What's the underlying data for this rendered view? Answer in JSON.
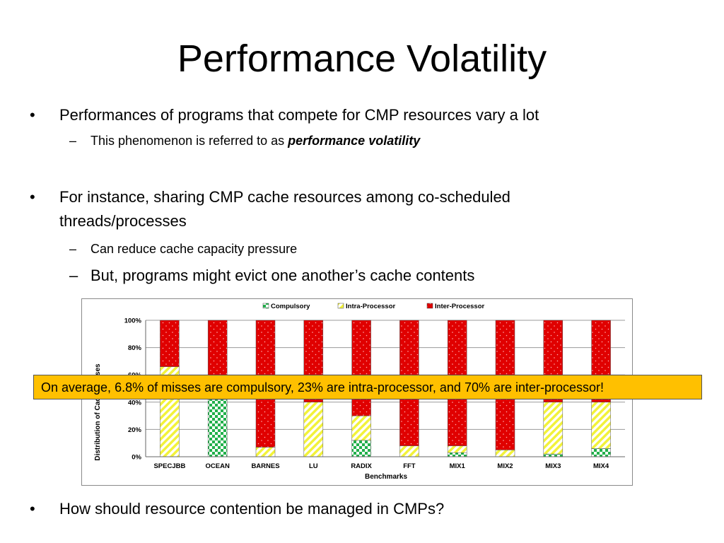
{
  "slide": {
    "title": "Performance Volatility",
    "bullets": [
      {
        "text": "Performances of programs that compete for CMP resources vary a lot",
        "subs": [
          {
            "prefix": "This phenomenon is referred to as ",
            "emphasis": "performance volatility"
          }
        ]
      },
      {
        "text": "For instance, sharing CMP cache resources among co-scheduled threads/processes",
        "subs": [
          {
            "text": "Can reduce cache capacity pressure"
          },
          {
            "text": "But, programs might evict one another’s cache contents"
          }
        ]
      },
      {
        "text": "How should resource contention be managed in CMPs?"
      }
    ],
    "callout": "On average, 6.8% of misses are compulsory, 23% are intra-processor, and 70% are inter-processor!",
    "bullet_glyph": "•",
    "dash_glyph": "–"
  },
  "chart_data": {
    "type": "bar",
    "stacked": true,
    "normalized": true,
    "categories": [
      "SPECJBB",
      "OCEAN",
      "BARNES",
      "LU",
      "RADIX",
      "FFT",
      "MIX1",
      "MIX2",
      "MIX3",
      "MIX4"
    ],
    "series": [
      {
        "name": "Compulsory",
        "color": "#22b04b",
        "pattern": "checker",
        "values": [
          0,
          42,
          0,
          0,
          12,
          0,
          3,
          0,
          2,
          6
        ]
      },
      {
        "name": "Intra-Processor",
        "color": "#ffff40",
        "pattern": "diagonal",
        "values": [
          66,
          0,
          7,
          40,
          18,
          8,
          5,
          5,
          38,
          34
        ]
      },
      {
        "name": "Inter-Processor",
        "color": "#e00000",
        "pattern": "dotted",
        "values": [
          34,
          58,
          93,
          60,
          70,
          92,
          92,
          95,
          60,
          60
        ]
      }
    ],
    "yticks": [
      "0%",
      "20%",
      "40%",
      "60%",
      "80%",
      "100%"
    ],
    "ylim": [
      0,
      100
    ],
    "xlabel": "Benchmarks",
    "ylabel": "Distribution of Cache Misses",
    "legend_position": "top"
  }
}
